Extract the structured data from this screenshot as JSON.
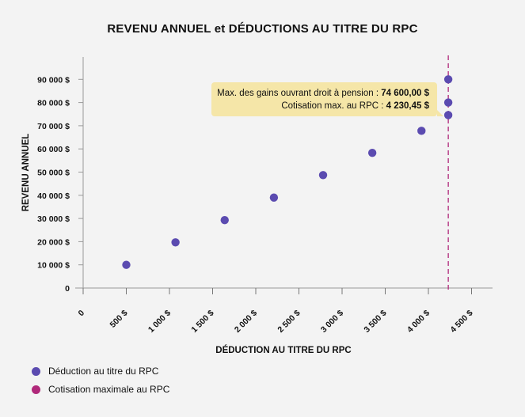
{
  "chart_data": {
    "type": "scatter",
    "title": "REVENU ANNUEL et DÉDUCTIONS AU TITRE DU RPC",
    "xlabel": "DÉDUCTION AU TITRE DU RPC",
    "ylabel": "REVENU ANNUEL",
    "xlim": [
      0,
      4750
    ],
    "ylim": [
      0,
      95000
    ],
    "x_ticks": [
      0,
      500,
      1000,
      1500,
      2000,
      2500,
      3000,
      3500,
      4000,
      4500
    ],
    "x_tick_labels": [
      "0",
      "500 $",
      "1 000 $",
      "1 500 $",
      "2 000 $",
      "2 500 $",
      "3 000 $",
      "3 500 $",
      "4 000 $",
      "4 500 $"
    ],
    "y_ticks": [
      0,
      10000,
      20000,
      30000,
      40000,
      50000,
      60000,
      70000,
      80000,
      90000
    ],
    "y_tick_labels": [
      "0",
      "10 000 $",
      "20 000 $",
      "30 000 $",
      "40 000 $",
      "50 000 $",
      "60 000 $",
      "70 000 $",
      "80 000 $",
      "90 000 $"
    ],
    "grid": false,
    "legend_position": "bottom-left",
    "series": [
      {
        "name": "Déduction au titre du RPC",
        "color": "#5b4bb0",
        "x": [
          500,
          1070,
          1640,
          2210,
          2780,
          3350,
          3920,
          4230.45,
          4230.45,
          4230.45
        ],
        "y": [
          10000,
          19700,
          29300,
          39000,
          48700,
          58300,
          67800,
          74600,
          80000,
          90000
        ]
      }
    ],
    "reference_lines": [
      {
        "name": "Cotisation maximale au RPC",
        "color": "#b0287a",
        "orientation": "vertical",
        "x": 4230.45,
        "style": "dashed"
      }
    ],
    "annotation": {
      "line1_text": "Max. des gains ouvrant droit à pension : ",
      "line1_value": "74 600,00 $",
      "line2_text": "Cotisation max. au RPC : ",
      "line2_value": "4 230,45 $",
      "background": "#f5e6a8"
    }
  }
}
